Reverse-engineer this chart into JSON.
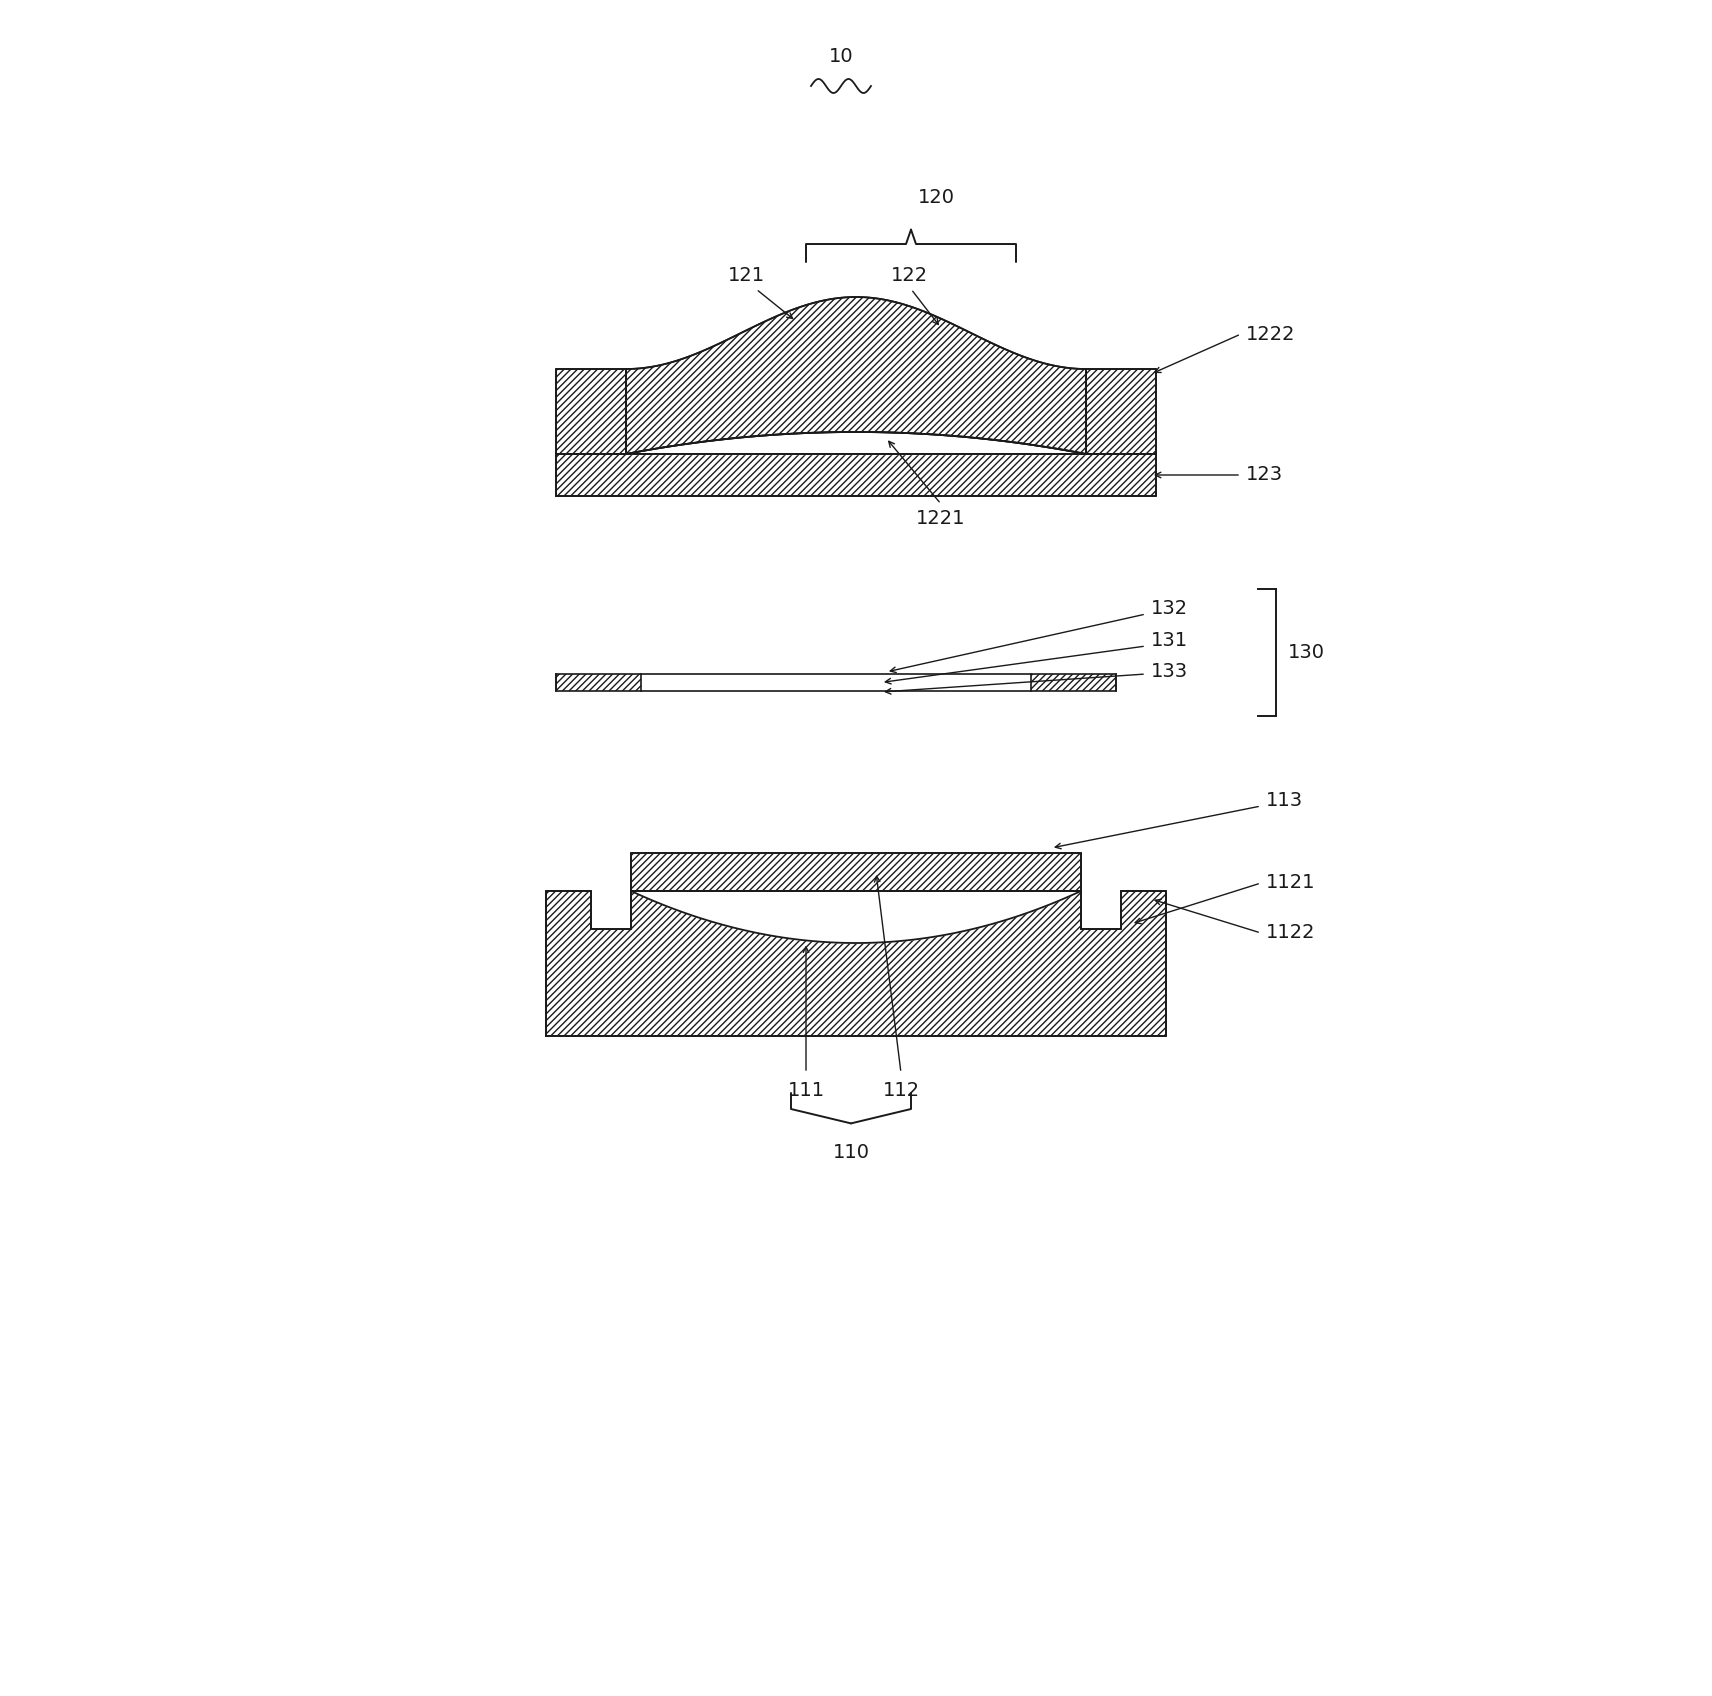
{
  "bg_color": "#ffffff",
  "line_color": "#1a1a1a",
  "label_10": "10",
  "label_120": "120",
  "label_121": "121",
  "label_122": "122",
  "label_1221": "1221",
  "label_1222": "1222",
  "label_123": "123",
  "label_130": "130",
  "label_131": "131",
  "label_132": "132",
  "label_133": "133",
  "label_110": "110",
  "label_111": "111",
  "label_112": "112",
  "label_113": "113",
  "label_1121": "1121",
  "label_1122": "1122",
  "font_size": 14
}
